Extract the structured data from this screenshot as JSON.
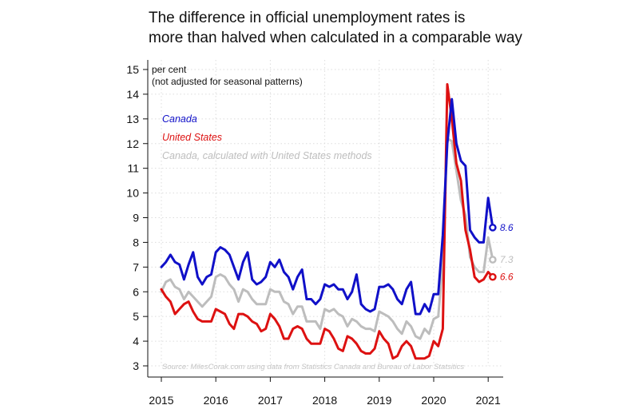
{
  "chart_data": {
    "type": "line",
    "title": [
      "The difference in official unemployment rates is",
      "more than halved when calculated in a comparable way"
    ],
    "ylabel": [
      "per cent",
      "(not adjusted for seasonal patterns)"
    ],
    "xlabel": "",
    "ylim": [
      3,
      15
    ],
    "xlim": [
      2015,
      2021.3
    ],
    "yticks": [
      3,
      4,
      5,
      6,
      7,
      8,
      9,
      10,
      11,
      12,
      13,
      14,
      15
    ],
    "xticks": [
      2015,
      2016,
      2017,
      2018,
      2019,
      2020,
      2021
    ],
    "grid": true,
    "source": "Source: MilesCorak.com using data from Statistics Canada and Bureau of Labor Statsitics",
    "colors": {
      "canada": "#1010c8",
      "us": "#dd1111",
      "canada_us": "#bdbdbd"
    },
    "series": [
      {
        "name": "Canada",
        "color": "#1010c8",
        "end_label": "8.6",
        "points": [
          [
            2015.0,
            7.0
          ],
          [
            2015.083,
            7.2
          ],
          [
            2015.167,
            7.5
          ],
          [
            2015.25,
            7.2
          ],
          [
            2015.333,
            7.1
          ],
          [
            2015.417,
            6.5
          ],
          [
            2015.5,
            7.1
          ],
          [
            2015.583,
            7.6
          ],
          [
            2015.667,
            6.6
          ],
          [
            2015.75,
            6.3
          ],
          [
            2015.833,
            6.6
          ],
          [
            2015.917,
            6.7
          ],
          [
            2016.0,
            7.6
          ],
          [
            2016.083,
            7.8
          ],
          [
            2016.167,
            7.7
          ],
          [
            2016.25,
            7.5
          ],
          [
            2016.333,
            7.0
          ],
          [
            2016.417,
            6.5
          ],
          [
            2016.5,
            7.2
          ],
          [
            2016.583,
            7.6
          ],
          [
            2016.667,
            6.5
          ],
          [
            2016.75,
            6.3
          ],
          [
            2016.833,
            6.4
          ],
          [
            2016.917,
            6.6
          ],
          [
            2017.0,
            7.2
          ],
          [
            2017.083,
            7.0
          ],
          [
            2017.167,
            7.3
          ],
          [
            2017.25,
            6.8
          ],
          [
            2017.333,
            6.6
          ],
          [
            2017.417,
            6.1
          ],
          [
            2017.5,
            6.6
          ],
          [
            2017.583,
            6.9
          ],
          [
            2017.667,
            5.7
          ],
          [
            2017.75,
            5.7
          ],
          [
            2017.833,
            5.5
          ],
          [
            2017.917,
            5.7
          ],
          [
            2018.0,
            6.3
          ],
          [
            2018.083,
            6.2
          ],
          [
            2018.167,
            6.3
          ],
          [
            2018.25,
            6.1
          ],
          [
            2018.333,
            6.1
          ],
          [
            2018.417,
            5.7
          ],
          [
            2018.5,
            6.0
          ],
          [
            2018.583,
            6.7
          ],
          [
            2018.667,
            5.5
          ],
          [
            2018.75,
            5.3
          ],
          [
            2018.833,
            5.2
          ],
          [
            2018.917,
            5.3
          ],
          [
            2019.0,
            6.2
          ],
          [
            2019.083,
            6.2
          ],
          [
            2019.167,
            6.3
          ],
          [
            2019.25,
            6.1
          ],
          [
            2019.333,
            5.7
          ],
          [
            2019.417,
            5.5
          ],
          [
            2019.5,
            6.1
          ],
          [
            2019.583,
            6.4
          ],
          [
            2019.667,
            5.1
          ],
          [
            2019.75,
            5.1
          ],
          [
            2019.833,
            5.5
          ],
          [
            2019.917,
            5.2
          ],
          [
            2020.0,
            5.9
          ],
          [
            2020.083,
            5.9
          ],
          [
            2020.167,
            8.3
          ],
          [
            2020.25,
            12.0
          ],
          [
            2020.333,
            13.8
          ],
          [
            2020.417,
            12.0
          ],
          [
            2020.5,
            11.3
          ],
          [
            2020.583,
            11.1
          ],
          [
            2020.667,
            8.5
          ],
          [
            2020.75,
            8.2
          ],
          [
            2020.833,
            8.0
          ],
          [
            2020.917,
            8.0
          ],
          [
            2021.0,
            9.8
          ],
          [
            2021.083,
            8.6
          ]
        ]
      },
      {
        "name": "United States",
        "color": "#dd1111",
        "end_label": "6.6",
        "points": [
          [
            2015.0,
            6.1
          ],
          [
            2015.083,
            5.8
          ],
          [
            2015.167,
            5.6
          ],
          [
            2015.25,
            5.1
          ],
          [
            2015.333,
            5.3
          ],
          [
            2015.417,
            5.5
          ],
          [
            2015.5,
            5.6
          ],
          [
            2015.583,
            5.2
          ],
          [
            2015.667,
            4.9
          ],
          [
            2015.75,
            4.8
          ],
          [
            2015.833,
            4.8
          ],
          [
            2015.917,
            4.8
          ],
          [
            2016.0,
            5.3
          ],
          [
            2016.083,
            5.2
          ],
          [
            2016.167,
            5.1
          ],
          [
            2016.25,
            4.7
          ],
          [
            2016.333,
            4.5
          ],
          [
            2016.417,
            5.1
          ],
          [
            2016.5,
            5.1
          ],
          [
            2016.583,
            5.0
          ],
          [
            2016.667,
            4.8
          ],
          [
            2016.75,
            4.7
          ],
          [
            2016.833,
            4.4
          ],
          [
            2016.917,
            4.5
          ],
          [
            2017.0,
            5.1
          ],
          [
            2017.083,
            4.9
          ],
          [
            2017.167,
            4.6
          ],
          [
            2017.25,
            4.1
          ],
          [
            2017.333,
            4.1
          ],
          [
            2017.417,
            4.5
          ],
          [
            2017.5,
            4.6
          ],
          [
            2017.583,
            4.5
          ],
          [
            2017.667,
            4.1
          ],
          [
            2017.75,
            3.9
          ],
          [
            2017.833,
            3.9
          ],
          [
            2017.917,
            3.9
          ],
          [
            2018.0,
            4.5
          ],
          [
            2018.083,
            4.4
          ],
          [
            2018.167,
            4.1
          ],
          [
            2018.25,
            3.7
          ],
          [
            2018.333,
            3.6
          ],
          [
            2018.417,
            4.2
          ],
          [
            2018.5,
            4.1
          ],
          [
            2018.583,
            3.9
          ],
          [
            2018.667,
            3.6
          ],
          [
            2018.75,
            3.5
          ],
          [
            2018.833,
            3.5
          ],
          [
            2018.917,
            3.7
          ],
          [
            2019.0,
            4.4
          ],
          [
            2019.083,
            4.1
          ],
          [
            2019.167,
            3.9
          ],
          [
            2019.25,
            3.3
          ],
          [
            2019.333,
            3.4
          ],
          [
            2019.417,
            3.8
          ],
          [
            2019.5,
            4.0
          ],
          [
            2019.583,
            3.8
          ],
          [
            2019.667,
            3.3
          ],
          [
            2019.75,
            3.3
          ],
          [
            2019.833,
            3.3
          ],
          [
            2019.917,
            3.4
          ],
          [
            2020.0,
            4.0
          ],
          [
            2020.083,
            3.8
          ],
          [
            2020.167,
            4.5
          ],
          [
            2020.25,
            14.4
          ],
          [
            2020.333,
            13.0
          ],
          [
            2020.417,
            11.2
          ],
          [
            2020.5,
            10.5
          ],
          [
            2020.583,
            8.5
          ],
          [
            2020.667,
            7.7
          ],
          [
            2020.75,
            6.6
          ],
          [
            2020.833,
            6.4
          ],
          [
            2020.917,
            6.5
          ],
          [
            2021.0,
            6.8
          ],
          [
            2021.083,
            6.6
          ]
        ]
      },
      {
        "name": "Canada, calculated with United States methods",
        "color": "#bdbdbd",
        "end_label": "7.3",
        "points": [
          [
            2015.0,
            6.0
          ],
          [
            2015.083,
            6.4
          ],
          [
            2015.167,
            6.5
          ],
          [
            2015.25,
            6.2
          ],
          [
            2015.333,
            6.1
          ],
          [
            2015.417,
            5.7
          ],
          [
            2015.5,
            6.0
          ],
          [
            2015.583,
            5.8
          ],
          [
            2015.667,
            5.6
          ],
          [
            2015.75,
            5.4
          ],
          [
            2015.833,
            5.6
          ],
          [
            2015.917,
            5.8
          ],
          [
            2016.0,
            6.6
          ],
          [
            2016.083,
            6.7
          ],
          [
            2016.167,
            6.6
          ],
          [
            2016.25,
            6.3
          ],
          [
            2016.333,
            6.1
          ],
          [
            2016.417,
            5.6
          ],
          [
            2016.5,
            6.1
          ],
          [
            2016.583,
            6.0
          ],
          [
            2016.667,
            5.7
          ],
          [
            2016.75,
            5.5
          ],
          [
            2016.833,
            5.5
          ],
          [
            2016.917,
            5.5
          ],
          [
            2017.0,
            6.1
          ],
          [
            2017.083,
            6.0
          ],
          [
            2017.167,
            6.0
          ],
          [
            2017.25,
            5.6
          ],
          [
            2017.333,
            5.5
          ],
          [
            2017.417,
            5.1
          ],
          [
            2017.5,
            5.4
          ],
          [
            2017.583,
            5.4
          ],
          [
            2017.667,
            4.8
          ],
          [
            2017.75,
            4.8
          ],
          [
            2017.833,
            4.8
          ],
          [
            2017.917,
            4.5
          ],
          [
            2018.0,
            5.3
          ],
          [
            2018.083,
            5.2
          ],
          [
            2018.167,
            5.3
          ],
          [
            2018.25,
            5.1
          ],
          [
            2018.333,
            5.0
          ],
          [
            2018.417,
            4.6
          ],
          [
            2018.5,
            4.9
          ],
          [
            2018.583,
            4.8
          ],
          [
            2018.667,
            4.6
          ],
          [
            2018.75,
            4.5
          ],
          [
            2018.833,
            4.5
          ],
          [
            2018.917,
            4.4
          ],
          [
            2019.0,
            5.2
          ],
          [
            2019.083,
            5.1
          ],
          [
            2019.167,
            5.0
          ],
          [
            2019.25,
            4.8
          ],
          [
            2019.333,
            4.5
          ],
          [
            2019.417,
            4.3
          ],
          [
            2019.5,
            4.8
          ],
          [
            2019.583,
            4.6
          ],
          [
            2019.667,
            4.2
          ],
          [
            2019.75,
            4.1
          ],
          [
            2019.833,
            4.5
          ],
          [
            2019.917,
            4.3
          ],
          [
            2020.0,
            4.9
          ],
          [
            2020.083,
            5.0
          ],
          [
            2020.167,
            7.2
          ],
          [
            2020.25,
            12.2
          ],
          [
            2020.333,
            12.1
          ],
          [
            2020.417,
            10.9
          ],
          [
            2020.5,
            9.7
          ],
          [
            2020.583,
            9.1
          ],
          [
            2020.667,
            7.4
          ],
          [
            2020.75,
            7.0
          ],
          [
            2020.833,
            6.8
          ],
          [
            2020.917,
            6.8
          ],
          [
            2021.0,
            8.2
          ],
          [
            2021.083,
            7.3
          ]
        ]
      }
    ]
  }
}
